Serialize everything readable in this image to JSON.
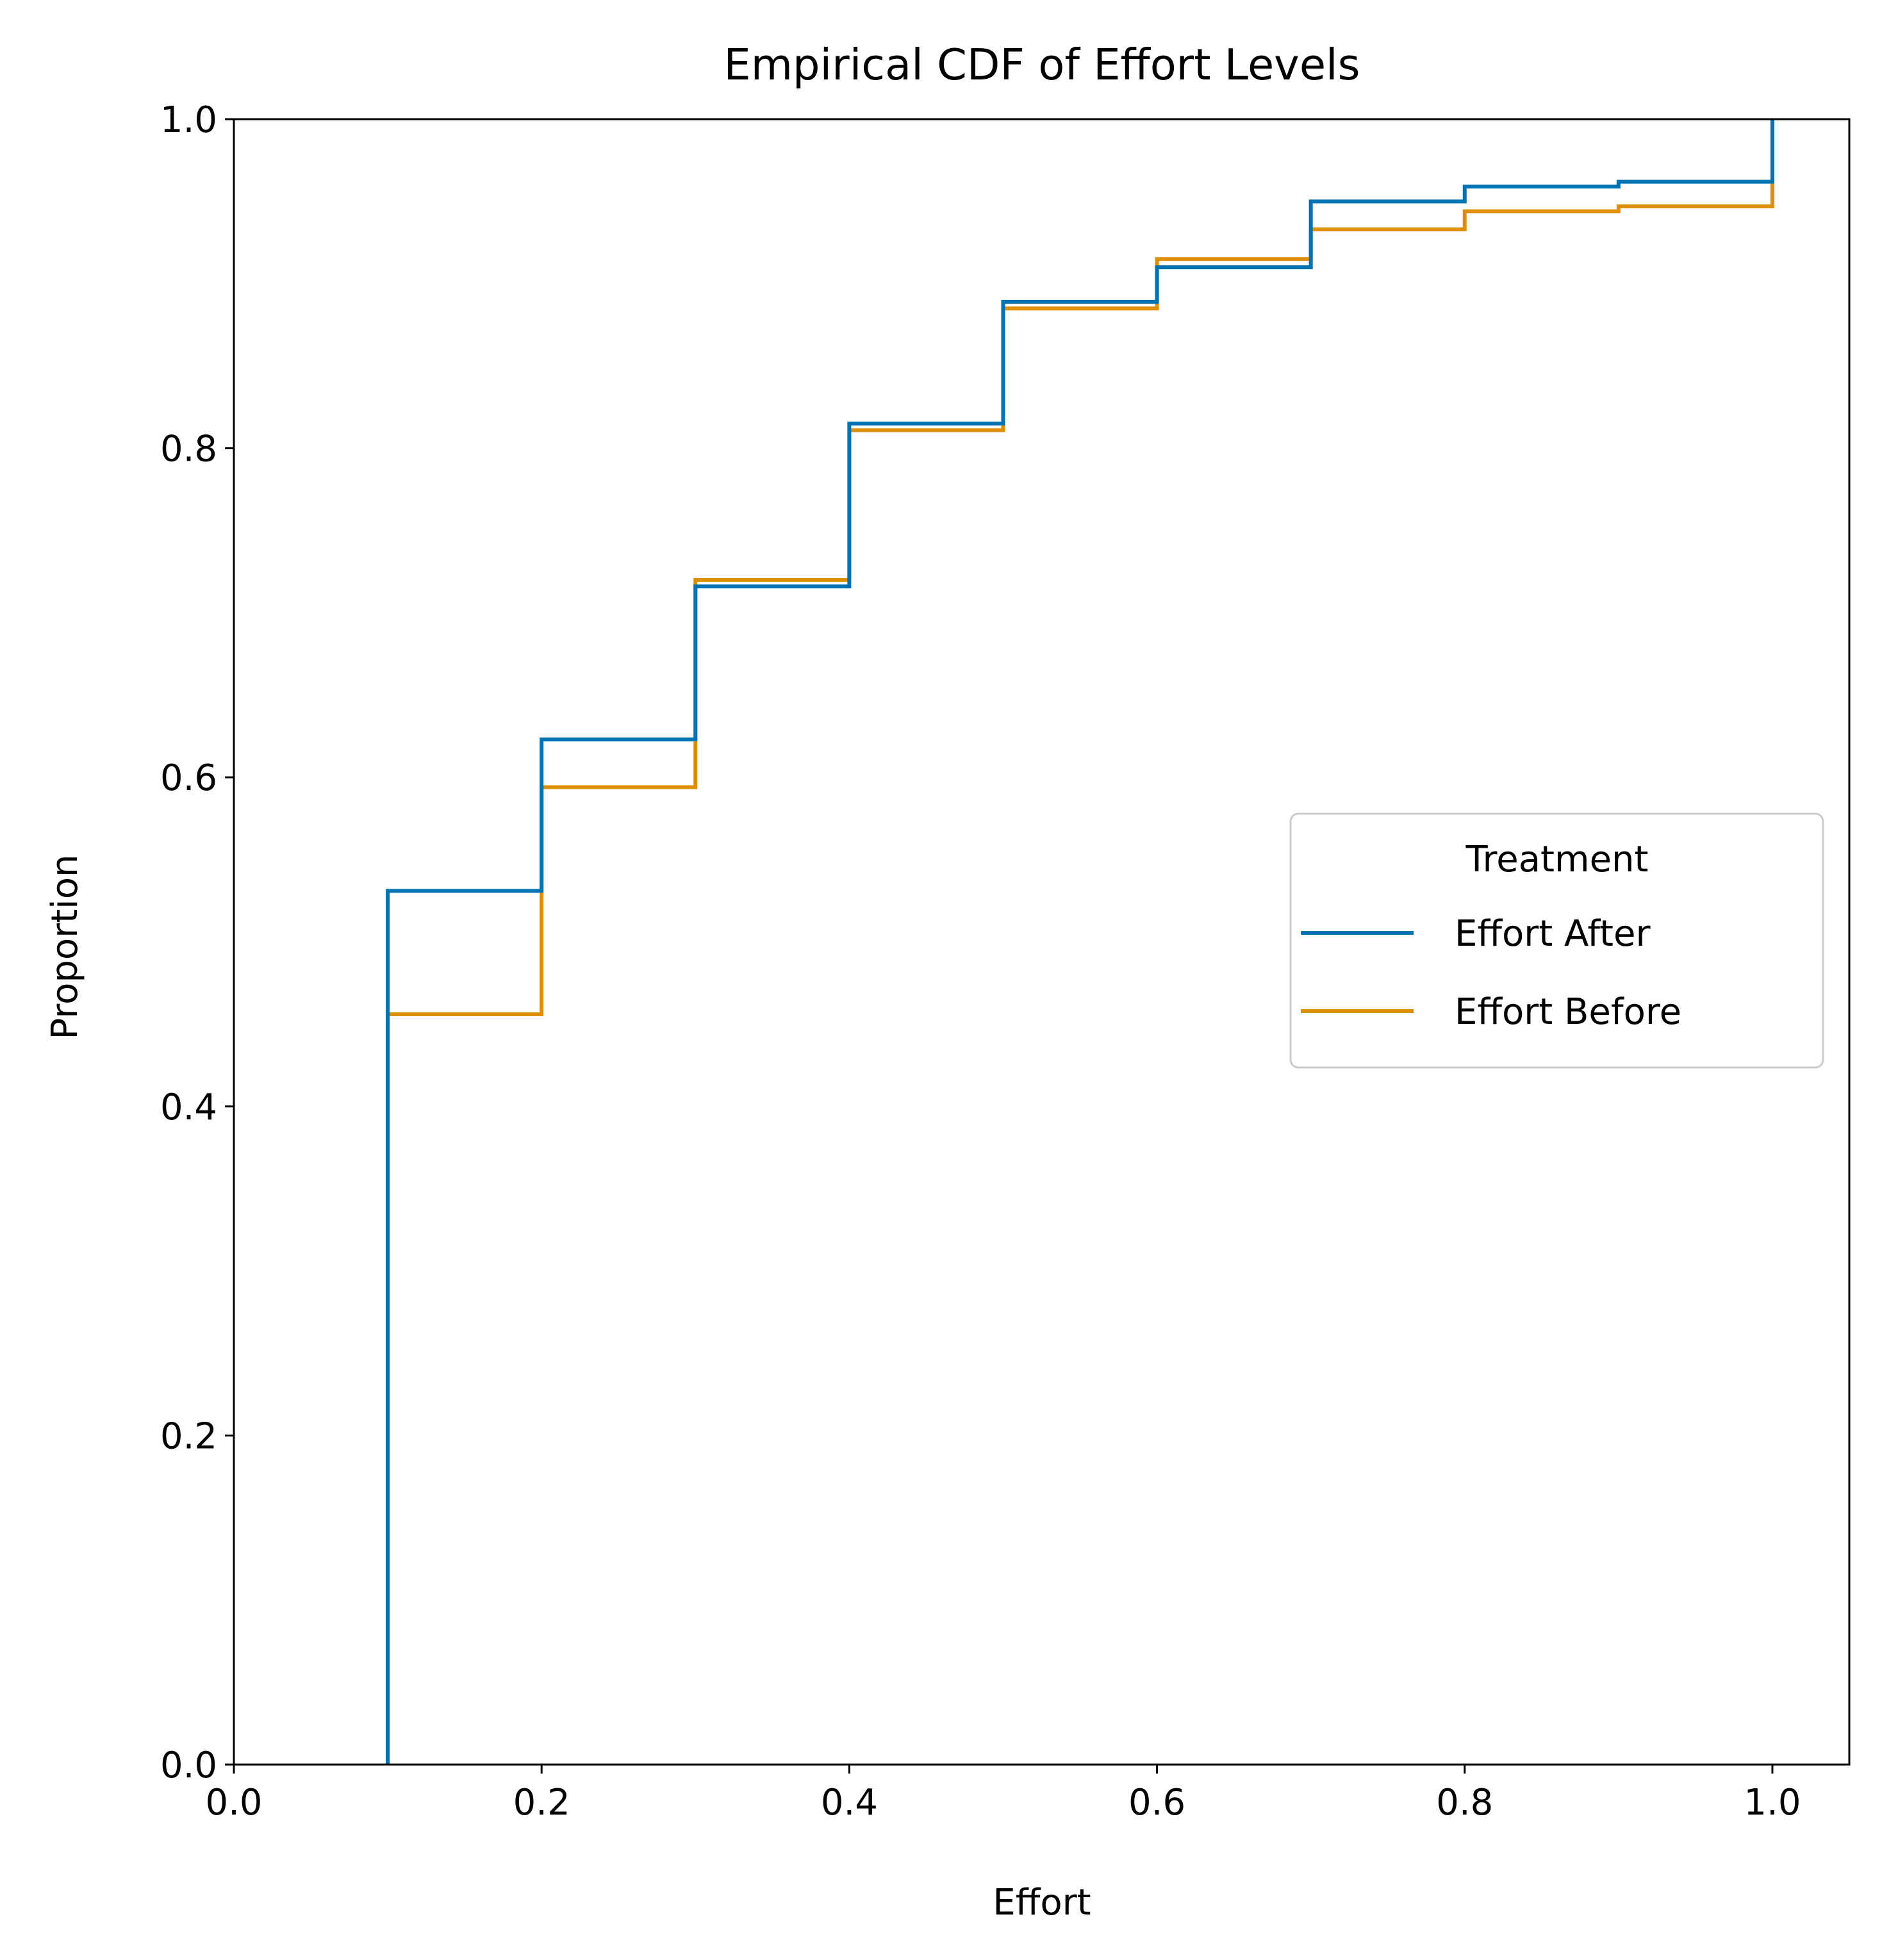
{
  "chart_data": {
    "type": "line",
    "style": "step-ecdf",
    "title": "Empirical CDF of Effort Levels",
    "xlabel": "Effort",
    "ylabel": "Proportion",
    "xlim": [
      0.0,
      1.05
    ],
    "ylim": [
      0.0,
      1.0
    ],
    "x_ticks": [
      "0.0",
      "0.2",
      "0.4",
      "0.6",
      "0.8",
      "1.0"
    ],
    "y_ticks": [
      "0.0",
      "0.2",
      "0.4",
      "0.6",
      "0.8",
      "1.0"
    ],
    "grid": false,
    "legend": {
      "title": "Treatment",
      "placement": "center-right"
    },
    "series": [
      {
        "name": "Effort After",
        "color": "#0173b2",
        "steps": [
          [
            0.1,
            0.531
          ],
          [
            0.2,
            0.623
          ],
          [
            0.3,
            0.716
          ],
          [
            0.4,
            0.815
          ],
          [
            0.5,
            0.889
          ],
          [
            0.6,
            0.91
          ],
          [
            0.7,
            0.95
          ],
          [
            0.8,
            0.959
          ],
          [
            0.9,
            0.962
          ],
          [
            1.0,
            1.0
          ]
        ]
      },
      {
        "name": "Effort Before",
        "color": "#de8f05",
        "steps": [
          [
            0.1,
            0.456
          ],
          [
            0.2,
            0.594
          ],
          [
            0.3,
            0.72
          ],
          [
            0.4,
            0.811
          ],
          [
            0.5,
            0.885
          ],
          [
            0.6,
            0.915
          ],
          [
            0.7,
            0.933
          ],
          [
            0.8,
            0.944
          ],
          [
            0.9,
            0.947
          ],
          [
            1.0,
            1.0
          ]
        ]
      }
    ]
  }
}
